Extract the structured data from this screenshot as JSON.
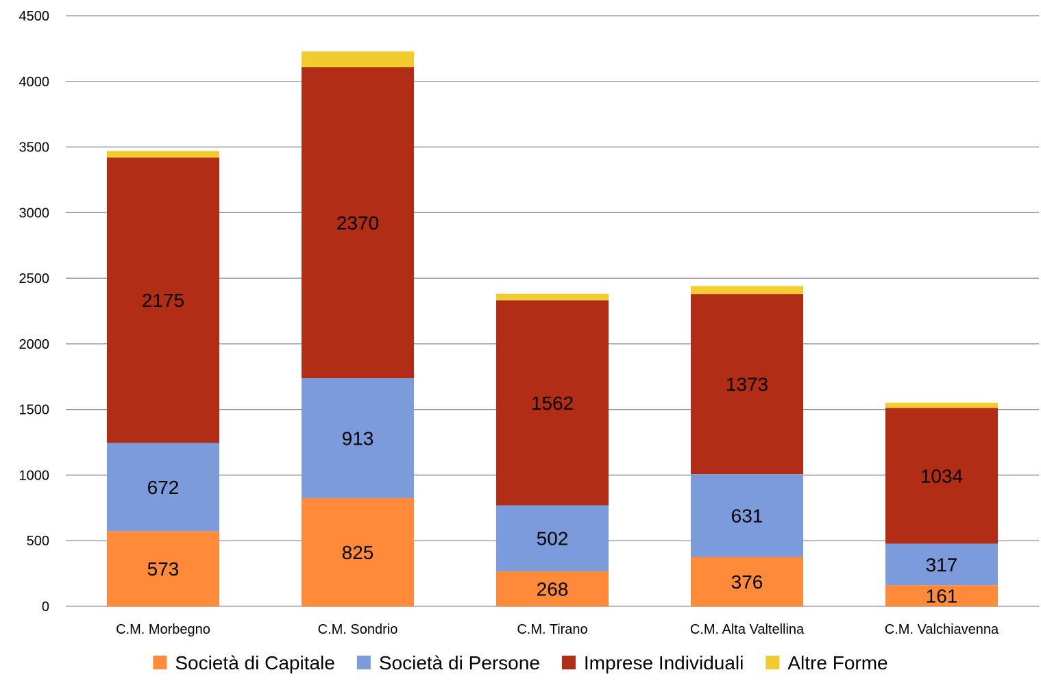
{
  "chart_data": {
    "type": "bar",
    "stacked": true,
    "title": "",
    "xlabel": "",
    "ylabel": "",
    "ylim": [
      0,
      4500
    ],
    "yticks": [
      0,
      500,
      1000,
      1500,
      2000,
      2500,
      3000,
      3500,
      4000,
      4500
    ],
    "grid": true,
    "legend_position": "bottom",
    "categories": [
      "C.M. Morbegno",
      "C.M. Sondrio",
      "C.M. Tirano",
      "C.M. Alta Valtellina",
      "C.M. Valchiavenna"
    ],
    "series": [
      {
        "name": "Società di Capitale",
        "color": "#FF8A3A",
        "values": [
          573,
          825,
          268,
          376,
          161
        ],
        "labels_shown": true
      },
      {
        "name": "Società di Persone",
        "color": "#7B9BDA",
        "values": [
          672,
          913,
          502,
          631,
          317
        ],
        "labels_shown": true
      },
      {
        "name": "Imprese Individuali",
        "color": "#B22D16",
        "values": [
          2175,
          2370,
          1562,
          1373,
          1034
        ],
        "labels_shown": true
      },
      {
        "name": "Altre Forme",
        "color": "#F2CC2E",
        "values": [
          50,
          120,
          50,
          60,
          40
        ],
        "labels_shown": false
      }
    ]
  }
}
